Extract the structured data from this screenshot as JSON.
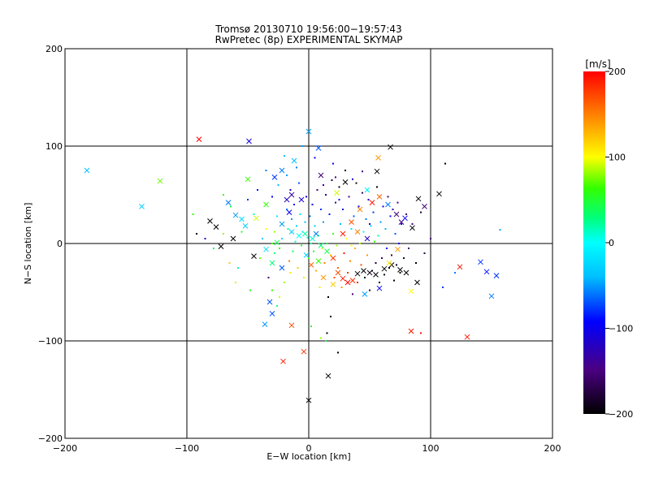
{
  "chart_data": {
    "type": "scatter",
    "title": "Tromsø 20130710 19:56:00−19:57:43",
    "subtitle": "RwPretec (8p) EXPERIMENTAL SKYMAP",
    "xlabel": "E−W location [km]",
    "ylabel": "N−S location [km]",
    "xlim": [
      -200,
      200
    ],
    "ylim": [
      -200,
      200
    ],
    "xticks": [
      "−200",
      "−100",
      "0",
      "100",
      "200"
    ],
    "yticks": [
      "−200",
      "−100",
      "0",
      "100",
      "200"
    ],
    "grid": true,
    "colorbar": {
      "label": "[m/s]",
      "range": [
        -200,
        200
      ],
      "ticks": [
        "−200",
        "−100",
        "0",
        "100",
        "200"
      ]
    },
    "markers": {
      "cross": [
        [
          -182,
          75,
          -40
        ],
        [
          -137,
          38,
          -30
        ],
        [
          -122,
          64,
          70
        ],
        [
          -90,
          107,
          200
        ],
        [
          -49,
          105,
          -110
        ],
        [
          -14,
          -84,
          170
        ],
        [
          -21,
          -121,
          190
        ],
        [
          -4,
          -111,
          180
        ],
        [
          0,
          -161,
          -200
        ],
        [
          16,
          -136,
          -200
        ],
        [
          8,
          98,
          -70
        ],
        [
          0,
          115,
          -50
        ],
        [
          67,
          99,
          -200
        ],
        [
          57,
          88,
          140
        ],
        [
          56,
          74,
          -200
        ],
        [
          107,
          51,
          -200
        ],
        [
          95,
          38,
          -150
        ],
        [
          90,
          46,
          -200
        ],
        [
          124,
          -24,
          190
        ],
        [
          141,
          -19,
          -80
        ],
        [
          146,
          -29,
          -90
        ],
        [
          154,
          -33,
          -80
        ],
        [
          150,
          -54,
          -60
        ],
        [
          130,
          -96,
          190
        ],
        [
          84,
          -90,
          190
        ],
        [
          84,
          -49,
          100
        ],
        [
          89,
          -40,
          -200
        ],
        [
          -36,
          -83,
          -50
        ],
        [
          -30,
          -72,
          -70
        ],
        [
          -32,
          -60,
          -70
        ],
        [
          -60,
          29,
          -50
        ],
        [
          -66,
          42,
          -60
        ],
        [
          -50,
          66,
          60
        ],
        [
          -76,
          17,
          -200
        ],
        [
          -81,
          23,
          -200
        ],
        [
          -72,
          -3,
          -200
        ],
        [
          -62,
          5,
          -200
        ],
        [
          -6,
          45,
          -110
        ],
        [
          -14,
          50,
          -130
        ],
        [
          -18,
          45,
          -120
        ],
        [
          -16,
          32,
          -100
        ],
        [
          -22,
          20,
          -50
        ],
        [
          -14,
          12,
          -30
        ],
        [
          -8,
          8,
          0
        ],
        [
          -3,
          10,
          20
        ],
        [
          3,
          5,
          10
        ],
        [
          6,
          10,
          -60
        ],
        [
          10,
          -2,
          30
        ],
        [
          15,
          -8,
          40
        ],
        [
          20,
          -15,
          180
        ],
        [
          24,
          -30,
          170
        ],
        [
          28,
          -36,
          190
        ],
        [
          32,
          -40,
          200
        ],
        [
          36,
          -38,
          180
        ],
        [
          40,
          -31,
          -200
        ],
        [
          45,
          -28,
          -200
        ],
        [
          50,
          -30,
          -190
        ],
        [
          55,
          -32,
          -200
        ],
        [
          62,
          -26,
          -200
        ],
        [
          68,
          -22,
          -200
        ],
        [
          75,
          -27,
          -200
        ],
        [
          80,
          -30,
          -200
        ],
        [
          28,
          10,
          190
        ],
        [
          35,
          22,
          170
        ],
        [
          42,
          35,
          150
        ],
        [
          48,
          55,
          -10
        ],
        [
          52,
          42,
          190
        ],
        [
          58,
          48,
          160
        ],
        [
          65,
          40,
          -60
        ],
        [
          72,
          30,
          -150
        ],
        [
          76,
          22,
          -150
        ],
        [
          79,
          26,
          -100
        ],
        [
          23,
          52,
          90
        ],
        [
          30,
          63,
          -200
        ],
        [
          10,
          70,
          -150
        ],
        [
          -22,
          75,
          -60
        ],
        [
          -28,
          68,
          -80
        ],
        [
          -12,
          85,
          -40
        ],
        [
          -35,
          40,
          60
        ],
        [
          -43,
          26,
          90
        ],
        [
          -52,
          18,
          -30
        ],
        [
          -55,
          25,
          -20
        ],
        [
          -26,
          1,
          40
        ],
        [
          -35,
          -6,
          -20
        ],
        [
          -45,
          -13,
          -200
        ],
        [
          -30,
          -20,
          30
        ],
        [
          -22,
          -25,
          -70
        ],
        [
          -2,
          -12,
          -30
        ],
        [
          2,
          -22,
          160
        ],
        [
          8,
          -18,
          60
        ],
        [
          12,
          -35,
          140
        ],
        [
          20,
          -42,
          120
        ],
        [
          46,
          -52,
          -50
        ],
        [
          58,
          -46,
          -100
        ],
        [
          66,
          -20,
          110
        ],
        [
          73,
          -6,
          140
        ],
        [
          85,
          16,
          -200
        ],
        [
          40,
          12,
          150
        ],
        [
          48,
          5,
          -120
        ]
      ],
      "dot": [
        [
          -95,
          30,
          60
        ],
        [
          -92,
          10,
          -200
        ],
        [
          -85,
          5,
          -120
        ],
        [
          -78,
          -5,
          40
        ],
        [
          -70,
          10,
          80
        ],
        [
          -65,
          -20,
          120
        ],
        [
          -58,
          -25,
          20
        ],
        [
          -55,
          12,
          50
        ],
        [
          -50,
          45,
          -80
        ],
        [
          -45,
          30,
          10
        ],
        [
          -42,
          55,
          -90
        ],
        [
          -40,
          -15,
          70
        ],
        [
          -38,
          5,
          -30
        ],
        [
          -35,
          15,
          100
        ],
        [
          -33,
          -35,
          -150
        ],
        [
          -30,
          48,
          -100
        ],
        [
          -28,
          -10,
          30
        ],
        [
          -26,
          28,
          -10
        ],
        [
          -25,
          60,
          -40
        ],
        [
          -24,
          -5,
          60
        ],
        [
          -22,
          5,
          -20
        ],
        [
          -20,
          -40,
          80
        ],
        [
          -18,
          35,
          -60
        ],
        [
          -17,
          15,
          20
        ],
        [
          -16,
          -18,
          150
        ],
        [
          -15,
          55,
          -120
        ],
        [
          -14,
          25,
          -50
        ],
        [
          -13,
          -8,
          40
        ],
        [
          -12,
          40,
          -90
        ],
        [
          -11,
          2,
          10
        ],
        [
          -10,
          18,
          -30
        ],
        [
          -9,
          -25,
          120
        ],
        [
          -8,
          62,
          -70
        ],
        [
          -7,
          30,
          -20
        ],
        [
          -6,
          -2,
          50
        ],
        [
          -5,
          12,
          -10
        ],
        [
          -4,
          -35,
          90
        ],
        [
          -3,
          22,
          -40
        ],
        [
          -2,
          48,
          -110
        ],
        [
          -1,
          6,
          0
        ],
        [
          0,
          -15,
          70
        ],
        [
          1,
          28,
          -60
        ],
        [
          2,
          0,
          20
        ],
        [
          3,
          40,
          -100
        ],
        [
          4,
          -8,
          60
        ],
        [
          5,
          18,
          -30
        ],
        [
          6,
          -28,
          130
        ],
        [
          7,
          55,
          -150
        ],
        [
          8,
          8,
          30
        ],
        [
          9,
          -45,
          110
        ],
        [
          10,
          35,
          -80
        ],
        [
          11,
          -5,
          90
        ],
        [
          12,
          22,
          -50
        ],
        [
          13,
          -20,
          150
        ],
        [
          14,
          50,
          -160
        ],
        [
          15,
          0,
          40
        ],
        [
          16,
          -55,
          -200
        ],
        [
          17,
          30,
          -90
        ],
        [
          18,
          -12,
          120
        ],
        [
          19,
          65,
          -180
        ],
        [
          20,
          10,
          60
        ],
        [
          21,
          -35,
          170
        ],
        [
          22,
          42,
          -130
        ],
        [
          23,
          -2,
          80
        ],
        [
          24,
          -25,
          160
        ],
        [
          25,
          58,
          -190
        ],
        [
          26,
          20,
          -40
        ],
        [
          27,
          -45,
          140
        ],
        [
          28,
          35,
          -110
        ],
        [
          29,
          -10,
          190
        ],
        [
          30,
          75,
          -200
        ],
        [
          31,
          5,
          100
        ],
        [
          32,
          -30,
          180
        ],
        [
          33,
          48,
          -140
        ],
        [
          34,
          -18,
          150
        ],
        [
          35,
          15,
          -20
        ],
        [
          36,
          -52,
          -150
        ],
        [
          37,
          28,
          -70
        ],
        [
          38,
          -5,
          130
        ],
        [
          39,
          62,
          -190
        ],
        [
          40,
          -40,
          190
        ],
        [
          41,
          38,
          -100
        ],
        [
          42,
          0,
          80
        ],
        [
          43,
          -22,
          170
        ],
        [
          44,
          52,
          -160
        ],
        [
          45,
          12,
          -10
        ],
        [
          46,
          -35,
          -190
        ],
        [
          47,
          25,
          -60
        ],
        [
          48,
          -12,
          140
        ],
        [
          49,
          45,
          -120
        ],
        [
          50,
          -48,
          -170
        ],
        [
          51,
          18,
          -30
        ],
        [
          52,
          -28,
          -200
        ],
        [
          53,
          32,
          -80
        ],
        [
          54,
          2,
          60
        ],
        [
          55,
          -20,
          -180
        ],
        [
          56,
          58,
          -200
        ],
        [
          57,
          8,
          20
        ],
        [
          58,
          -40,
          -200
        ],
        [
          59,
          22,
          -50
        ],
        [
          60,
          -15,
          -160
        ],
        [
          61,
          38,
          -110
        ],
        [
          62,
          -32,
          -190
        ],
        [
          63,
          15,
          -40
        ],
        [
          64,
          -5,
          -100
        ],
        [
          65,
          48,
          -150
        ],
        [
          66,
          -25,
          -200
        ],
        [
          67,
          28,
          -90
        ],
        [
          68,
          -12,
          -170
        ],
        [
          69,
          35,
          -130
        ],
        [
          70,
          -38,
          -200
        ],
        [
          71,
          10,
          -70
        ],
        [
          72,
          -22,
          -190
        ],
        [
          73,
          42,
          -140
        ],
        [
          74,
          0,
          -110
        ],
        [
          75,
          -30,
          -200
        ],
        [
          76,
          20,
          -100
        ],
        [
          78,
          -15,
          -180
        ],
        [
          80,
          30,
          -160
        ],
        [
          82,
          -5,
          -150
        ],
        [
          85,
          20,
          -140
        ],
        [
          88,
          -20,
          -200
        ],
        [
          92,
          32,
          -180
        ],
        [
          95,
          -10,
          -170
        ],
        [
          100,
          5,
          -150
        ],
        [
          112,
          82,
          -200
        ],
        [
          157,
          14,
          -50
        ],
        [
          92,
          -92,
          190
        ],
        [
          110,
          -45,
          -80
        ],
        [
          120,
          -30,
          -60
        ],
        [
          -60,
          -40,
          90
        ],
        [
          -48,
          -48,
          50
        ],
        [
          -24,
          -55,
          90
        ],
        [
          -26,
          -64,
          30
        ],
        [
          -30,
          -48,
          60
        ],
        [
          -70,
          50,
          60
        ],
        [
          -64,
          38,
          40
        ],
        [
          -35,
          75,
          -60
        ],
        [
          -20,
          90,
          -40
        ],
        [
          -5,
          100,
          -50
        ],
        [
          20,
          82,
          -100
        ],
        [
          36,
          66,
          -120
        ],
        [
          44,
          74,
          -150
        ],
        [
          50,
          20,
          -120
        ],
        [
          35,
          -2,
          100
        ],
        [
          25,
          45,
          -90
        ],
        [
          18,
          -75,
          -200
        ],
        [
          15,
          -92,
          -200
        ],
        [
          24,
          -112,
          -200
        ],
        [
          10,
          -97,
          80
        ],
        [
          14,
          -100,
          40
        ],
        [
          2,
          -85,
          50
        ],
        [
          -28,
          12,
          80
        ],
        [
          -18,
          70,
          -50
        ],
        [
          -10,
          78,
          -60
        ],
        [
          5,
          88,
          -100
        ],
        [
          12,
          60,
          -140
        ],
        [
          22,
          68,
          -150
        ],
        [
          -30,
          0,
          60
        ],
        [
          -15,
          -30,
          110
        ]
      ]
    }
  }
}
